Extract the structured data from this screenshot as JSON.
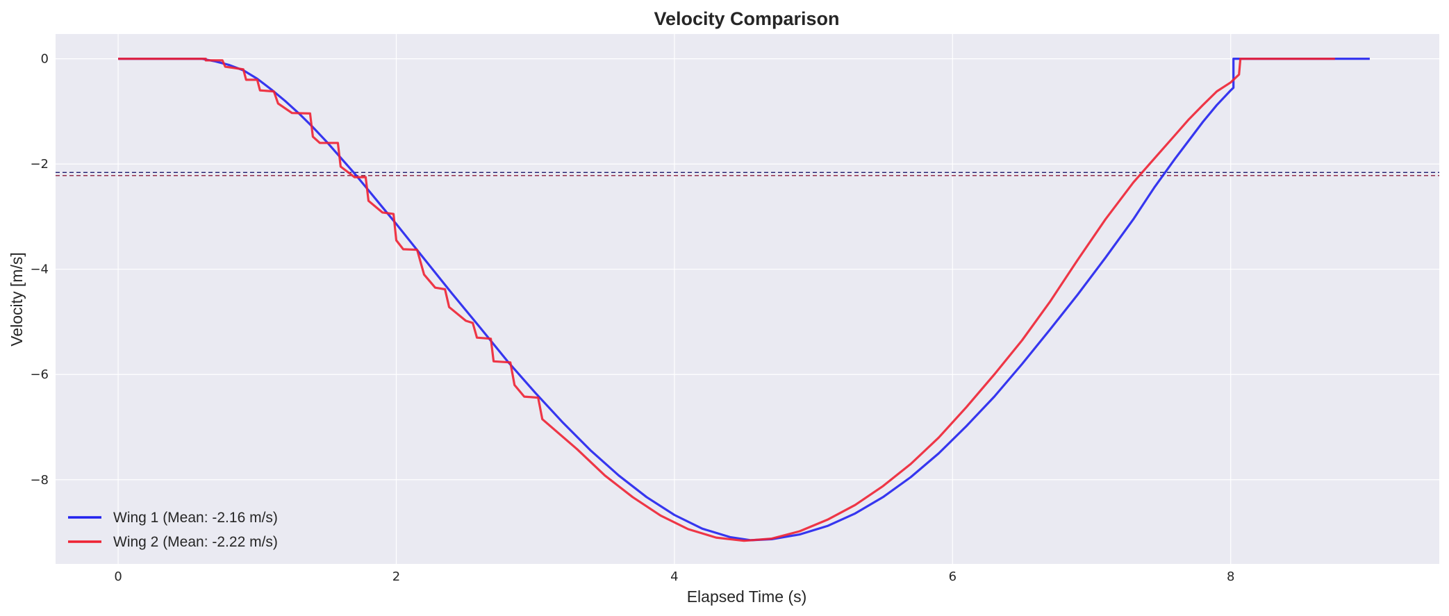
{
  "chart_data": {
    "type": "line",
    "title": "Velocity Comparison",
    "xlabel": "Elapsed Time (s)",
    "ylabel": "Velocity [m/s]",
    "xlim": [
      -0.45,
      9.5
    ],
    "ylim": [
      -9.6,
      0.47
    ],
    "xticks": [
      0,
      2,
      4,
      6,
      8
    ],
    "yticks": [
      0,
      -2,
      -4,
      -6,
      -8
    ],
    "grid": true,
    "legend_position": "lower-left",
    "background_color": "#eaeaf2",
    "series": [
      {
        "name": "Wing 1 (Mean: -2.16 m/s)",
        "color": "#2222ee",
        "mean": -2.16,
        "points": [
          [
            0,
            0
          ],
          [
            0.6,
            0
          ],
          [
            0.7,
            -0.05
          ],
          [
            0.8,
            -0.12
          ],
          [
            0.9,
            -0.22
          ],
          [
            1.0,
            -0.38
          ],
          [
            1.1,
            -0.58
          ],
          [
            1.2,
            -0.8
          ],
          [
            1.3,
            -1.04
          ],
          [
            1.4,
            -1.3
          ],
          [
            1.5,
            -1.58
          ],
          [
            1.6,
            -1.88
          ],
          [
            1.7,
            -2.18
          ],
          [
            1.8,
            -2.5
          ],
          [
            1.9,
            -2.82
          ],
          [
            2.0,
            -3.14
          ],
          [
            2.2,
            -3.8
          ],
          [
            2.4,
            -4.46
          ],
          [
            2.6,
            -5.1
          ],
          [
            2.8,
            -5.75
          ],
          [
            3.0,
            -6.35
          ],
          [
            3.2,
            -6.92
          ],
          [
            3.4,
            -7.45
          ],
          [
            3.6,
            -7.92
          ],
          [
            3.8,
            -8.33
          ],
          [
            4.0,
            -8.67
          ],
          [
            4.2,
            -8.93
          ],
          [
            4.4,
            -9.09
          ],
          [
            4.55,
            -9.15
          ],
          [
            4.7,
            -9.13
          ],
          [
            4.9,
            -9.04
          ],
          [
            5.1,
            -8.88
          ],
          [
            5.3,
            -8.64
          ],
          [
            5.5,
            -8.33
          ],
          [
            5.7,
            -7.95
          ],
          [
            5.9,
            -7.5
          ],
          [
            6.1,
            -6.98
          ],
          [
            6.3,
            -6.42
          ],
          [
            6.5,
            -5.8
          ],
          [
            6.7,
            -5.15
          ],
          [
            6.9,
            -4.48
          ],
          [
            7.1,
            -3.78
          ],
          [
            7.3,
            -3.05
          ],
          [
            7.45,
            -2.45
          ],
          [
            7.6,
            -1.9
          ],
          [
            7.7,
            -1.55
          ],
          [
            7.8,
            -1.2
          ],
          [
            7.9,
            -0.88
          ],
          [
            8.0,
            -0.6
          ],
          [
            8.02,
            -0.55
          ],
          [
            8.02,
            0
          ],
          [
            9.0,
            0
          ]
        ]
      },
      {
        "name": "Wing 2 (Mean: -2.22 m/s)",
        "color": "#ee2233",
        "mean": -2.22,
        "points": [
          [
            0,
            0
          ],
          [
            0.63,
            0
          ],
          [
            0.63,
            -0.03
          ],
          [
            0.75,
            -0.03
          ],
          [
            0.77,
            -0.15
          ],
          [
            0.9,
            -0.2
          ],
          [
            0.92,
            -0.4
          ],
          [
            1.0,
            -0.4
          ],
          [
            1.02,
            -0.6
          ],
          [
            1.12,
            -0.62
          ],
          [
            1.15,
            -0.85
          ],
          [
            1.25,
            -1.03
          ],
          [
            1.38,
            -1.04
          ],
          [
            1.4,
            -1.48
          ],
          [
            1.45,
            -1.6
          ],
          [
            1.58,
            -1.6
          ],
          [
            1.6,
            -2.05
          ],
          [
            1.7,
            -2.25
          ],
          [
            1.78,
            -2.25
          ],
          [
            1.8,
            -2.7
          ],
          [
            1.9,
            -2.92
          ],
          [
            1.98,
            -2.95
          ],
          [
            2.0,
            -3.45
          ],
          [
            2.05,
            -3.62
          ],
          [
            2.15,
            -3.63
          ],
          [
            2.2,
            -4.1
          ],
          [
            2.28,
            -4.35
          ],
          [
            2.35,
            -4.38
          ],
          [
            2.38,
            -4.72
          ],
          [
            2.5,
            -4.98
          ],
          [
            2.55,
            -5.02
          ],
          [
            2.58,
            -5.3
          ],
          [
            2.68,
            -5.32
          ],
          [
            2.7,
            -5.75
          ],
          [
            2.82,
            -5.77
          ],
          [
            2.85,
            -6.2
          ],
          [
            2.92,
            -6.42
          ],
          [
            3.02,
            -6.44
          ],
          [
            3.05,
            -6.85
          ],
          [
            3.3,
            -7.42
          ],
          [
            3.5,
            -7.92
          ],
          [
            3.7,
            -8.33
          ],
          [
            3.9,
            -8.68
          ],
          [
            4.1,
            -8.94
          ],
          [
            4.3,
            -9.1
          ],
          [
            4.5,
            -9.16
          ],
          [
            4.7,
            -9.12
          ],
          [
            4.9,
            -8.98
          ],
          [
            5.1,
            -8.76
          ],
          [
            5.3,
            -8.48
          ],
          [
            5.5,
            -8.12
          ],
          [
            5.7,
            -7.7
          ],
          [
            5.9,
            -7.2
          ],
          [
            6.1,
            -6.62
          ],
          [
            6.3,
            -6.0
          ],
          [
            6.5,
            -5.35
          ],
          [
            6.7,
            -4.62
          ],
          [
            6.9,
            -3.82
          ],
          [
            7.1,
            -3.05
          ],
          [
            7.3,
            -2.35
          ],
          [
            7.4,
            -2.05
          ],
          [
            7.5,
            -1.75
          ],
          [
            7.6,
            -1.45
          ],
          [
            7.7,
            -1.15
          ],
          [
            7.8,
            -0.88
          ],
          [
            7.9,
            -0.62
          ],
          [
            8.0,
            -0.45
          ],
          [
            8.06,
            -0.3
          ],
          [
            8.07,
            0
          ],
          [
            8.75,
            0
          ]
        ]
      }
    ]
  }
}
